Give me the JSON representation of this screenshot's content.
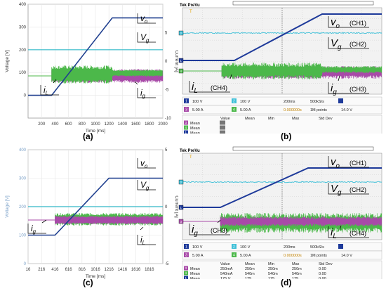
{
  "panel_labels": [
    "(a)",
    "(b)",
    "(c)",
    "(d)"
  ],
  "colors": {
    "vo": "#1f3f8f",
    "vg": "#30b8c8",
    "iL": "#4cb84a",
    "ig": "#a84aa8",
    "scope_bg": "#f2f2f2",
    "vo_scope": "#1e3a9a",
    "vg_scope": "#40c0d8"
  },
  "chart_data": [
    {
      "id": "a",
      "type": "line",
      "xlabel": "Time [ms]",
      "ylabel": "Voltage [V]",
      "y2label": "Current [A]",
      "xticks": [
        200,
        400,
        600,
        800,
        1000,
        1200,
        1400,
        1600,
        1800,
        2000
      ],
      "xlim": [
        0,
        2000
      ],
      "ylim": [
        -100,
        400
      ],
      "yticks": [
        0,
        100,
        200,
        300,
        400
      ],
      "y2lim": [
        -10,
        10
      ],
      "y2ticks": [
        -10,
        -5,
        0,
        5
      ],
      "series": [
        {
          "name": "v_o",
          "points": [
            [
              0,
              0
            ],
            [
              350,
              0
            ],
            [
              1250,
              340
            ],
            [
              2000,
              340
            ]
          ]
        },
        {
          "name": "V_g",
          "points": [
            [
              0,
              200
            ],
            [
              2000,
              200
            ]
          ]
        }
      ],
      "annotations": [
        "v_o",
        "V_g",
        "i_L",
        "i_g"
      ]
    },
    {
      "id": "b",
      "type": "line",
      "scope_header": "Tek PreVu",
      "channel_labels": [
        "v_o (CH1)",
        "V_g (CH2)",
        "i_L (CH4)",
        "i_g (CH3)"
      ],
      "channel_settings": [
        {
          "ch": "1",
          "value": "100 V"
        },
        {
          "ch": "2",
          "value": "100 V"
        },
        {
          "ch": "3",
          "value": "5.00 A"
        },
        {
          "ch": "4",
          "value": "5.00 A"
        }
      ],
      "timebase": "200ms",
      "sample_rate": "500kS/s",
      "trigger_pos": "0.000000s",
      "record": "1M points",
      "trigger_level": "14.0 V",
      "meas_headers": [
        "Value",
        "Mean",
        "Min",
        "Max",
        "Std Dev"
      ],
      "meas_rows": [
        {
          "ch": "3",
          "label": "Mean"
        },
        {
          "ch": "4",
          "label": "Mean"
        },
        {
          "ch": "1",
          "label": "Mean"
        }
      ]
    },
    {
      "id": "c",
      "type": "line",
      "xlabel": "Time [ms]",
      "ylabel": "Voltage [V]",
      "y2label": "Current [A]",
      "xticks": [
        16,
        216,
        416,
        616,
        816,
        1016,
        1216,
        1416,
        1616,
        1816
      ],
      "xlim": [
        16,
        2016
      ],
      "ylim": [
        0,
        400
      ],
      "yticks": [
        0,
        100,
        200,
        300,
        400
      ],
      "y2lim": [
        -5,
        5
      ],
      "y2ticks": [
        -5,
        0,
        5
      ],
      "series": [
        {
          "name": "v_o",
          "points": [
            [
              16,
              100
            ],
            [
              416,
              100
            ],
            [
              1216,
              300
            ],
            [
              2016,
              300
            ]
          ]
        },
        {
          "name": "V_g",
          "points": [
            [
              16,
              200
            ],
            [
              2016,
              200
            ]
          ]
        }
      ],
      "annotations": [
        "v_o",
        "V_g",
        "i_g",
        "i_L"
      ]
    },
    {
      "id": "d",
      "type": "line",
      "scope_header": "Tek PreVu",
      "channel_labels": [
        "v_o (CH1)",
        "V_g (CH2)",
        "i_g (CH3)",
        "i_L (CH4)"
      ],
      "channel_settings": [
        {
          "ch": "1",
          "value": "100 V"
        },
        {
          "ch": "2",
          "value": "100 V"
        },
        {
          "ch": "3",
          "value": "5.00 A"
        },
        {
          "ch": "4",
          "value": "5.00 A"
        }
      ],
      "timebase": "200ms",
      "sample_rate": "500kS/s",
      "trigger_pos": "0.000000s",
      "record": "1M points",
      "trigger_level": "14.0 V",
      "meas_headers": [
        "Value",
        "Mean",
        "Min",
        "Max",
        "Std Dev"
      ],
      "meas_rows": [
        {
          "ch": "3",
          "label": "Mean",
          "value": "250mA",
          "mean": "250m",
          "min": "250m",
          "max": "250m",
          "std": "0.00"
        },
        {
          "ch": "4",
          "label": "Mean",
          "value": "540mA",
          "mean": "540m",
          "min": "540m",
          "max": "540m",
          "std": "0.00"
        },
        {
          "ch": "1",
          "label": "Mean",
          "value": "175 V",
          "mean": "175",
          "min": "175",
          "max": "175",
          "std": "0.00"
        }
      ]
    }
  ]
}
